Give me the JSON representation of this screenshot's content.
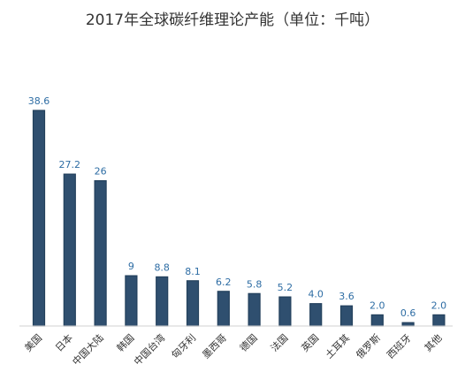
{
  "chart_data": {
    "type": "bar",
    "title": "2017年全球碳纤维理论产能（单位：千吨）",
    "categories": [
      "美国",
      "日本",
      "中国大陆",
      "韩国",
      "中国台湾",
      "匈牙利",
      "墨西哥",
      "德国",
      "法国",
      "英国",
      "土耳其",
      "俄罗斯",
      "西班牙",
      "其他"
    ],
    "value_labels": [
      "38.6",
      "27.2",
      "26",
      "9",
      "8.8",
      "8.1",
      "6.2",
      "5.8",
      "5.2",
      "4.0",
      "3.6",
      "2.0",
      "0.6",
      "2.0"
    ],
    "values": [
      38.6,
      27.2,
      26,
      9,
      8.8,
      8.1,
      6.2,
      5.8,
      5.2,
      4.0,
      3.6,
      2.0,
      0.6,
      2.0
    ],
    "ylim": [
      0,
      40
    ],
    "grid": false,
    "legend": "none",
    "colors": {
      "bar_fill": "#2f4f6f",
      "bar_stroke": "#23405c",
      "value_label": "#2e6da4",
      "category_label": "#333333",
      "baseline": "#d0d0d0"
    }
  }
}
